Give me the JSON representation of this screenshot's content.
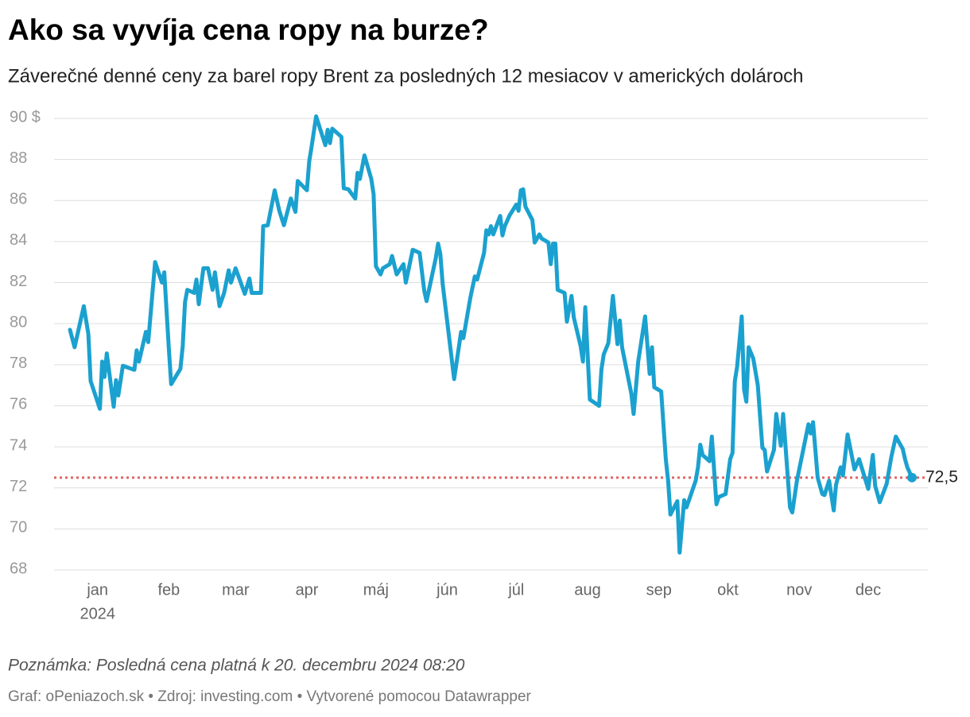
{
  "chart_data": {
    "type": "line",
    "title": "Ako sa vyvíja cena ropy na burze?",
    "subtitle": "Záverečné denné ceny za barel ropy Brent za posledných 12 mesiacov v amerických dolároch",
    "note": "Poznámka: Posledná cena platná k 20. decembru 2024 08:20",
    "footer": "Graf: oPeniazoch.sk • Zdroj: investing.com • Vytvorené pomocou Datawrapper",
    "color": "#1ba1cf",
    "x": [
      -12,
      -10,
      -6,
      -4,
      -3,
      1,
      2,
      3,
      4,
      7,
      8,
      9,
      11,
      16,
      17,
      18,
      21,
      22,
      25,
      28,
      29,
      31,
      32,
      36,
      37,
      38,
      39,
      42,
      43,
      44,
      46,
      48,
      50,
      51,
      53,
      55,
      57,
      58,
      60,
      64,
      66,
      67,
      71,
      72,
      74,
      77,
      79,
      81,
      84,
      86,
      87,
      91,
      92,
      93,
      95,
      99,
      100,
      101,
      102,
      106,
      107,
      109,
      112,
      113,
      114,
      116,
      119,
      120,
      121,
      123,
      124,
      127,
      128,
      130,
      133,
      134,
      137,
      140,
      142,
      143,
      147,
      148,
      149,
      150,
      155,
      158,
      159,
      162,
      164,
      165,
      168,
      169,
      170,
      171,
      172,
      175,
      176,
      177,
      179,
      182,
      183,
      184,
      185,
      186,
      189,
      190,
      192,
      193,
      196,
      197,
      198,
      199,
      200,
      203,
      204,
      206,
      207,
      210,
      211,
      212,
      214,
      218,
      219,
      220,
      222,
      224,
      226,
      227,
      228,
      232,
      233,
      235,
      238,
      240,
      241,
      242,
      245,
      247,
      248,
      249,
      252,
      253,
      255,
      256,
      260,
      261,
      262,
      263,
      266,
      267,
      269,
      270,
      273,
      275,
      276,
      277,
      278,
      280,
      281,
      282,
      283,
      285,
      287,
      289,
      290,
      291,
      294,
      295,
      297,
      298,
      301,
      302,
      304,
      305,
      309,
      310,
      311,
      313,
      315,
      316,
      318,
      320,
      321,
      323,
      324,
      326,
      329,
      331,
      335,
      337,
      338,
      340,
      343,
      345,
      347,
      350,
      351,
      352,
      354
    ],
    "values": [
      79.7,
      78.85,
      80.85,
      79.5,
      77.2,
      75.85,
      78.15,
      77.4,
      78.55,
      75.95,
      77.25,
      76.5,
      77.95,
      77.75,
      78.7,
      78.15,
      79.6,
      79.1,
      83.0,
      82.0,
      82.5,
      78.75,
      77.05,
      77.8,
      78.9,
      81.05,
      81.65,
      81.5,
      82.15,
      80.95,
      82.7,
      82.7,
      81.65,
      82.5,
      80.85,
      81.5,
      82.6,
      82.0,
      82.7,
      81.45,
      82.2,
      81.5,
      81.5,
      84.75,
      84.8,
      86.5,
      85.5,
      84.8,
      86.1,
      85.45,
      86.95,
      86.5,
      87.9,
      88.6,
      90.1,
      88.7,
      89.45,
      88.8,
      89.5,
      89.1,
      86.6,
      86.55,
      86.1,
      87.35,
      87.05,
      88.2,
      87.05,
      86.3,
      82.8,
      82.4,
      82.7,
      82.9,
      83.3,
      82.4,
      82.9,
      82.0,
      83.6,
      83.45,
      81.6,
      81.1,
      83.2,
      83.9,
      83.4,
      81.95,
      77.3,
      79.6,
      79.3,
      81.25,
      82.3,
      82.15,
      83.45,
      84.55,
      84.35,
      84.75,
      84.35,
      85.25,
      84.3,
      84.75,
      85.25,
      85.8,
      85.5,
      86.5,
      86.55,
      85.7,
      85.05,
      83.95,
      84.35,
      84.15,
      83.95,
      82.9,
      83.9,
      83.9,
      81.65,
      81.5,
      80.1,
      81.35,
      80.3,
      78.9,
      78.15,
      80.8,
      76.3,
      76.0,
      77.75,
      78.5,
      79.05,
      81.35,
      79.0,
      80.15,
      78.85,
      76.6,
      75.6,
      78.15,
      80.35,
      77.55,
      78.85,
      76.9,
      76.7,
      73.4,
      72.35,
      70.7,
      71.35,
      68.85,
      71.4,
      71.05,
      72.35,
      73.0,
      74.1,
      73.6,
      73.3,
      74.5,
      71.2,
      71.55,
      71.7,
      73.4,
      73.7,
      77.2,
      77.9,
      80.35,
      76.8,
      76.2,
      78.85,
      78.3,
      77.0,
      73.95,
      73.85,
      72.8,
      73.85,
      75.6,
      74.05,
      75.6,
      71.05,
      70.8,
      72.35,
      72.9,
      75.1,
      74.65,
      75.2,
      72.5,
      71.7,
      71.65,
      72.35,
      70.9,
      72.15,
      73.0,
      72.6,
      74.6,
      72.9,
      73.4,
      71.95,
      73.6,
      72.1,
      71.3,
      72.2,
      73.5,
      74.5,
      73.9,
      73.4,
      73.0,
      72.5
    ],
    "xlim": [
      -12,
      354
    ],
    "xticks": [
      {
        "value": 0,
        "label": "jan"
      },
      {
        "value": 31,
        "label": "feb"
      },
      {
        "value": 60,
        "label": "mar"
      },
      {
        "value": 91,
        "label": "apr"
      },
      {
        "value": 121,
        "label": "máj"
      },
      {
        "value": 152,
        "label": "jún"
      },
      {
        "value": 182,
        "label": "júl"
      },
      {
        "value": 213,
        "label": "aug"
      },
      {
        "value": 244,
        "label": "sep"
      },
      {
        "value": 274,
        "label": "okt"
      },
      {
        "value": 305,
        "label": "nov"
      },
      {
        "value": 335,
        "label": "dec"
      }
    ],
    "x_year_label": "2024",
    "ylim": [
      68,
      90
    ],
    "yticks": [
      68,
      70,
      72,
      74,
      76,
      78,
      80,
      82,
      84,
      86,
      88,
      {
        "value": 90,
        "label": "90 $"
      }
    ],
    "grid": true,
    "reference_line": {
      "value": 72.5,
      "label": "72,5",
      "color": "#e06666"
    }
  }
}
